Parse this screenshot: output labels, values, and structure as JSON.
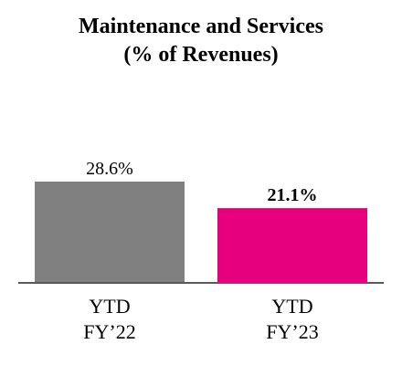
{
  "chart_data": {
    "type": "bar",
    "title": "Maintenance and Services",
    "subtitle": "(% of Revenues)",
    "categories": [
      {
        "line1": "YTD",
        "line2": "FY’22"
      },
      {
        "line1": "YTD",
        "line2": "FY’23"
      }
    ],
    "values": [
      28.6,
      21.1
    ],
    "data_labels": [
      "28.6%",
      "21.1%"
    ],
    "data_label_bold": [
      false,
      true
    ],
    "colors": [
      "#808080",
      "#e6007e"
    ],
    "ylim": [
      0,
      40
    ],
    "grid": false,
    "legend": "none"
  }
}
